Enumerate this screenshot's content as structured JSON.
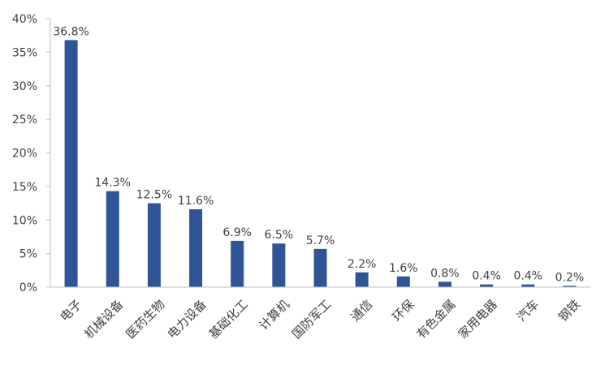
{
  "chart_data": {
    "type": "bar",
    "categories": [
      "电子",
      "机械设备",
      "医药生物",
      "电力设备",
      "基础化工",
      "计算机",
      "国防军工",
      "通信",
      "环保",
      "有色金属",
      "家用电器",
      "汽车",
      "钢铁"
    ],
    "values": [
      36.8,
      14.3,
      12.5,
      11.6,
      6.9,
      6.5,
      5.7,
      2.2,
      1.6,
      0.8,
      0.4,
      0.4,
      0.2
    ],
    "data_labels": [
      "36.8%",
      "14.3%",
      "12.5%",
      "11.6%",
      "6.9%",
      "6.5%",
      "5.7%",
      "2.2%",
      "1.6%",
      "0.8%",
      "0.4%",
      "0.4%",
      "0.2%"
    ],
    "y_ticks": [
      0,
      5,
      10,
      15,
      20,
      25,
      30,
      35,
      40
    ],
    "y_tick_labels": [
      "0%",
      "5%",
      "10%",
      "15%",
      "20%",
      "25%",
      "30%",
      "35%",
      "40%"
    ],
    "ylim": [
      0,
      40
    ],
    "title": "",
    "xlabel": "",
    "ylabel": "",
    "grid": false,
    "legend": "none",
    "bar_color": "#2f5597"
  }
}
